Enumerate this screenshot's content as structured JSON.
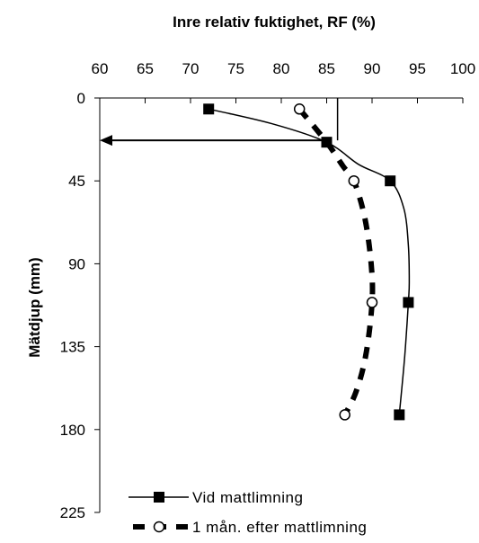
{
  "chart_data": {
    "type": "line",
    "title": "Inre relativ fuktighet, RF (%)",
    "xlabel": "Inre relativ fuktighet, RF (%)",
    "ylabel": "Mätdjup (mm)",
    "x_axis_position": "top",
    "y_axis_inverted": true,
    "xlim": [
      60,
      100
    ],
    "ylim": [
      0,
      225
    ],
    "x_ticks": [
      "60",
      "65",
      "70",
      "75",
      "80",
      "85",
      "90",
      "95",
      "100"
    ],
    "y_ticks": [
      "0",
      "45",
      "90",
      "135",
      "180",
      "225"
    ],
    "grid": false,
    "legend_position": "bottom",
    "series": [
      {
        "name": "Vid mattlimning",
        "style": "solid",
        "marker": "filled-square",
        "color": "#000000",
        "points": [
          [
            72,
            6
          ],
          [
            85,
            24
          ],
          [
            92,
            45
          ],
          [
            94,
            111
          ],
          [
            93,
            172
          ]
        ],
        "curve": [
          [
            72,
            6
          ],
          [
            79,
            14
          ],
          [
            85,
            24
          ],
          [
            88.5,
            36
          ],
          [
            92,
            45
          ],
          [
            93.5,
            60
          ],
          [
            94,
            80
          ],
          [
            94.1,
            100
          ],
          [
            94,
            111
          ],
          [
            93.6,
            140
          ],
          [
            93,
            172
          ]
        ]
      },
      {
        "name": "1 mån. efter mattlimning",
        "style": "dashed",
        "marker": "open-circle",
        "color": "#000000",
        "points": [
          [
            82,
            6
          ],
          [
            88,
            45
          ],
          [
            90,
            111
          ],
          [
            87,
            172
          ]
        ],
        "curve": [
          [
            82,
            6
          ],
          [
            85,
            24
          ],
          [
            86.8,
            37
          ],
          [
            88,
            45
          ],
          [
            89.2,
            65
          ],
          [
            89.9,
            90
          ],
          [
            90,
            111
          ],
          [
            89.3,
            140
          ],
          [
            88.2,
            160
          ],
          [
            87,
            172
          ]
        ]
      }
    ],
    "annotations": [
      {
        "type": "vertical-line",
        "x": 86.2,
        "y_range": [
          0,
          23
        ]
      },
      {
        "type": "arrow",
        "from": [
          85,
          23
        ],
        "to": [
          60,
          23
        ]
      }
    ]
  }
}
